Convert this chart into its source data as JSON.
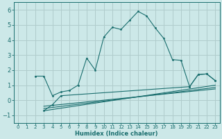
{
  "background_color": "#cce8e8",
  "grid_color": "#b0cccc",
  "line_color": "#1a6e6e",
  "xlim": [
    -0.5,
    23.5
  ],
  "ylim": [
    -1.5,
    6.5
  ],
  "xlabel": "Humidex (Indice chaleur)",
  "xticks": [
    0,
    1,
    2,
    3,
    4,
    5,
    6,
    7,
    8,
    9,
    10,
    11,
    12,
    13,
    14,
    15,
    16,
    17,
    18,
    19,
    20,
    21,
    22,
    23
  ],
  "yticks": [
    -1,
    0,
    1,
    2,
    3,
    4,
    5,
    6
  ],
  "series": [
    {
      "x": [
        2,
        3,
        4,
        5,
        6,
        7,
        8,
        9,
        10,
        11,
        12,
        13,
        14,
        15,
        16,
        17,
        18,
        19,
        20,
        21,
        22,
        23
      ],
      "y": [
        1.6,
        1.6,
        0.3,
        0.55,
        0.65,
        1.0,
        2.8,
        2.0,
        4.2,
        4.85,
        4.7,
        5.3,
        5.9,
        5.6,
        4.8,
        4.1,
        2.7,
        2.65,
        0.9,
        1.7,
        1.75,
        1.3
      ],
      "marker": true
    },
    {
      "x": [
        3,
        23
      ],
      "y": [
        -0.7,
        1.0
      ],
      "marker": false
    },
    {
      "x": [
        3,
        23
      ],
      "y": [
        -0.55,
        0.85
      ],
      "marker": false
    },
    {
      "x": [
        3,
        23
      ],
      "y": [
        -0.4,
        0.75
      ],
      "marker": false
    },
    {
      "x": [
        3,
        4,
        5,
        20,
        21,
        22,
        23
      ],
      "y": [
        -0.7,
        -0.3,
        0.3,
        0.9,
        1.7,
        1.75,
        1.3
      ],
      "marker": true
    }
  ]
}
